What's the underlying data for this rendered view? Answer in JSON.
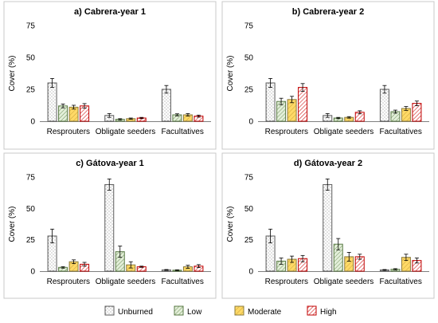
{
  "chart_data": {
    "type": "bar",
    "panels": [
      {
        "title": "a) Cabrera-year 1",
        "ylabel": "Cover (%)",
        "ylim": [
          0,
          75
        ],
        "yticks": [
          0,
          25,
          50,
          75
        ],
        "categories": [
          "Resprouters",
          "Obligate seeders",
          "Facultatives"
        ],
        "series": [
          {
            "name": "Unburned",
            "values": [
              30,
              4.5,
              25
            ],
            "errors": [
              3.5,
              1.5,
              3
            ]
          },
          {
            "name": "Low",
            "values": [
              12,
              1.5,
              5
            ],
            "errors": [
              1.5,
              0.5,
              0.8
            ]
          },
          {
            "name": "Moderate",
            "values": [
              11,
              2,
              5
            ],
            "errors": [
              1.5,
              0.5,
              1
            ]
          },
          {
            "name": "High",
            "values": [
              12,
              2.5,
              4
            ],
            "errors": [
              1.8,
              0.5,
              0.8
            ]
          }
        ]
      },
      {
        "title": "b) Cabrera-year 2",
        "ylabel": "Cover (%)",
        "ylim": [
          0,
          75
        ],
        "yticks": [
          0,
          25,
          50,
          75
        ],
        "categories": [
          "Resprouters",
          "Obligate seeders",
          "Facultatives"
        ],
        "series": [
          {
            "name": "Unburned",
            "values": [
              30,
              4.5,
              25
            ],
            "errors": [
              3.5,
              1.5,
              3
            ]
          },
          {
            "name": "Low",
            "values": [
              15.5,
              2.5,
              7.5
            ],
            "errors": [
              2.5,
              0.5,
              1.2
            ]
          },
          {
            "name": "Moderate",
            "values": [
              17,
              3,
              10
            ],
            "errors": [
              2.5,
              0.6,
              1.5
            ]
          },
          {
            "name": "High",
            "values": [
              26.5,
              7,
              14
            ],
            "errors": [
              3,
              1.2,
              1.8
            ]
          }
        ]
      },
      {
        "title": "c) Gátova-year 1",
        "ylabel": "Cover (%)",
        "ylim": [
          0,
          75
        ],
        "yticks": [
          0,
          25,
          50,
          75
        ],
        "categories": [
          "Resprouters",
          "Obligate seeders",
          "Facultatives"
        ],
        "series": [
          {
            "name": "Unburned",
            "values": [
              28,
              69,
              1
            ],
            "errors": [
              5.5,
              4.5,
              0.3
            ]
          },
          {
            "name": "Low",
            "values": [
              3,
              15.5,
              0.8
            ],
            "errors": [
              0.6,
              4.5,
              0.3
            ]
          },
          {
            "name": "Moderate",
            "values": [
              7.5,
              5,
              3.5
            ],
            "errors": [
              1.5,
              2.5,
              1.2
            ]
          },
          {
            "name": "High",
            "values": [
              5.5,
              3.5,
              4
            ],
            "errors": [
              1.5,
              0.5,
              1.2
            ]
          }
        ]
      },
      {
        "title": "d) Gátova-year 2",
        "ylabel": "Cover (%)",
        "ylim": [
          0,
          75
        ],
        "yticks": [
          0,
          25,
          50,
          75
        ],
        "categories": [
          "Resprouters",
          "Obligate seeders",
          "Facultatives"
        ],
        "series": [
          {
            "name": "Unburned",
            "values": [
              28,
              69,
              1
            ],
            "errors": [
              5.5,
              4.5,
              0.3
            ]
          },
          {
            "name": "Low",
            "values": [
              8,
              21.5,
              1.5
            ],
            "errors": [
              2.5,
              4.5,
              0.5
            ]
          },
          {
            "name": "Moderate",
            "values": [
              9.5,
              11.5,
              11
            ],
            "errors": [
              2.5,
              3.5,
              2.5
            ]
          },
          {
            "name": "High",
            "values": [
              10,
              11.5,
              8.5
            ],
            "errors": [
              2.5,
              2,
              2
            ]
          }
        ]
      }
    ],
    "legend": {
      "position": "bottom",
      "entries": [
        "Unburned",
        "Low",
        "Moderate",
        "High"
      ]
    },
    "grid": false
  },
  "styles": {
    "Unburned": {
      "fill": "#ffffff",
      "stroke": "#5a5a5a",
      "pattern": "dots",
      "ink": "#6d6d6d"
    },
    "Low": {
      "fill": "#e3efd9",
      "stroke": "#5a7a46",
      "pattern": "hatch",
      "ink": "#6f8f5a"
    },
    "Moderate": {
      "fill": "#ffd966",
      "stroke": "#8a7a3c",
      "pattern": "hatch-light",
      "ink": "#c9a43a"
    },
    "High": {
      "fill": "#ffffff",
      "stroke": "#c00000",
      "pattern": "hatch-red",
      "ink": "#d42a2a"
    }
  }
}
